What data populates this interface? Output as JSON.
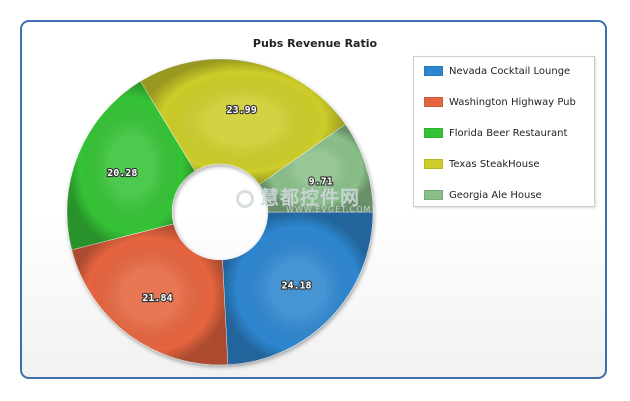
{
  "chart_data": {
    "type": "pie",
    "title": "Pubs Revenue Ratio",
    "categories": [
      "Nevada Cocktail Lounge",
      "Washington Highway Pub",
      "Florida Beer Restaurant",
      "Texas SteakHouse",
      "Georgia Ale House"
    ],
    "values": [
      24.18,
      21.84,
      20.28,
      23.99,
      9.71
    ],
    "value_labels": [
      "24.18",
      "21.84",
      "20.28",
      "23.99",
      "9.71"
    ],
    "colors": [
      "#2e86cf",
      "#e5653f",
      "#36c236",
      "#cccc2a",
      "#8abf8a"
    ],
    "legend_position": "right",
    "donut": true
  },
  "watermark": {
    "text": "慧都控件网",
    "subtext": "WWW.EVGET.COM"
  }
}
